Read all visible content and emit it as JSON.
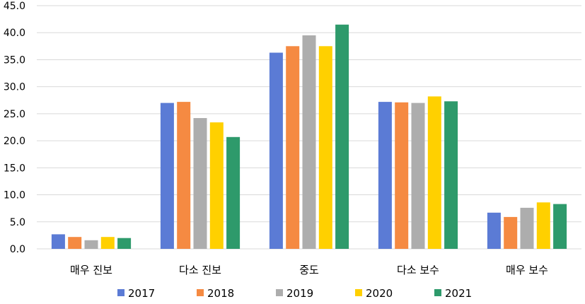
{
  "chart_data": {
    "type": "bar",
    "categories": [
      "매우 진보",
      "다소 진보",
      "중도",
      "다소 보수",
      "매우 보수"
    ],
    "series": [
      {
        "name": "2017",
        "color": "#5B7BD5",
        "values": [
          2.7,
          27.0,
          36.3,
          27.2,
          6.7
        ]
      },
      {
        "name": "2018",
        "color": "#F58A42",
        "values": [
          2.2,
          27.2,
          37.5,
          27.1,
          5.9
        ]
      },
      {
        "name": "2019",
        "color": "#ADADAD",
        "values": [
          1.6,
          24.2,
          39.5,
          27.0,
          7.6
        ]
      },
      {
        "name": "2020",
        "color": "#FFD000",
        "values": [
          2.2,
          23.4,
          37.5,
          28.2,
          8.6
        ]
      },
      {
        "name": "2021",
        "color": "#2E9A6B",
        "values": [
          2.0,
          20.7,
          41.5,
          27.3,
          8.3
        ]
      }
    ],
    "y_ticks": [
      "0.0",
      "5.0",
      "10.0",
      "15.0",
      "20.0",
      "25.0",
      "30.0",
      "35.0",
      "40.0",
      "45.0"
    ],
    "ylim": [
      0,
      45
    ],
    "grid": true,
    "legend_position": "bottom",
    "gridline_color": "#D9D9D9"
  }
}
